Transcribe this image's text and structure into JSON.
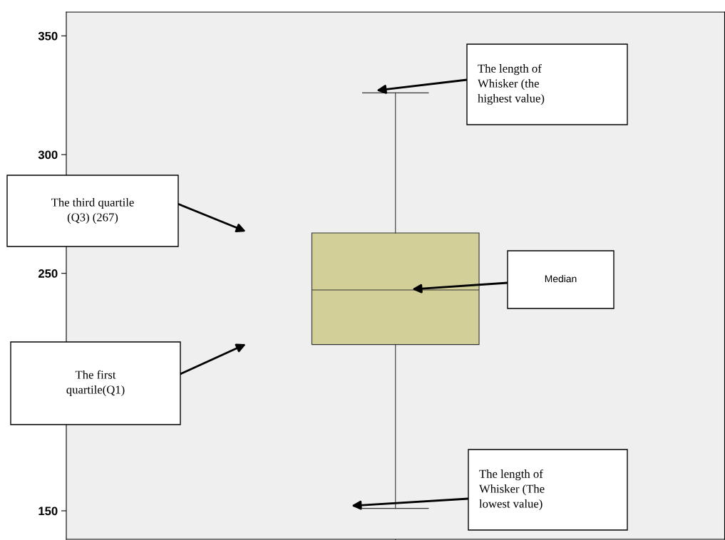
{
  "chart_data": {
    "type": "box",
    "categories": [
      null
    ],
    "boxes": [
      {
        "low": 151,
        "q1": 220,
        "median": 243,
        "q3": 267,
        "high": 326
      }
    ],
    "color": "#d3cf98",
    "ylim": [
      138,
      360
    ],
    "yticks": [
      150,
      250,
      300,
      350
    ],
    "annotations": [
      "The length of\nWhisker (the\nhighest value)",
      "The third quartile\n(Q3) (267)",
      "Median",
      "The first\nquartile(Q1)",
      "The length of\nWhisker (The\nlowest value)"
    ],
    "grid": false
  }
}
